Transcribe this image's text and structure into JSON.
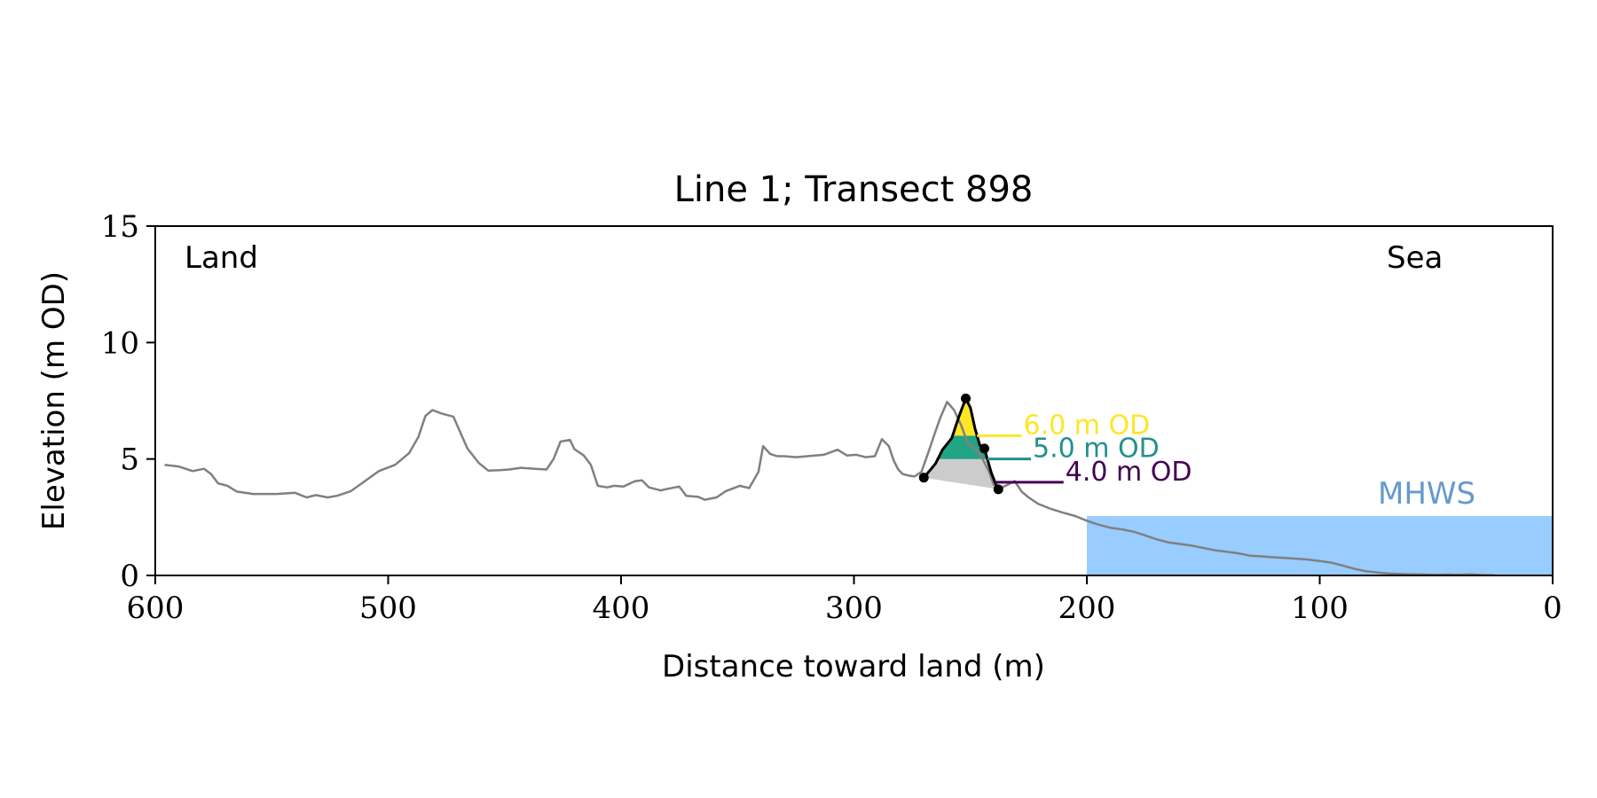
{
  "chart_data": {
    "type": "line",
    "title": "Line 1; Transect 898",
    "xlabel": "Distance toward land (m)",
    "ylabel": "Elevation (m OD)",
    "xlim": [
      600,
      0
    ],
    "ylim": [
      0,
      15
    ],
    "xticks": [
      600,
      500,
      400,
      300,
      200,
      100,
      0
    ],
    "yticks": [
      0,
      5,
      10,
      15
    ],
    "grid": false,
    "annotations": {
      "land": "Land",
      "sea": "Sea",
      "mhws": "MHWS"
    },
    "mhws": {
      "elevation": 2.55,
      "x_start": 200,
      "x_end": 0
    },
    "profile": {
      "x": [
        596,
        590,
        584,
        579,
        576,
        573,
        569,
        565,
        558,
        548,
        540,
        535,
        531,
        526,
        522,
        516,
        510,
        504,
        497,
        491,
        487,
        484,
        481,
        477,
        472,
        466,
        461,
        457,
        452,
        448,
        443,
        437,
        432,
        429,
        426,
        422,
        420,
        416,
        413,
        410,
        406,
        403,
        399,
        394,
        391,
        388,
        383,
        380,
        375,
        372,
        367,
        364,
        359,
        355,
        349,
        345,
        341,
        339,
        336,
        333,
        330,
        325,
        320,
        313,
        307,
        303,
        299,
        295,
        291,
        288,
        285,
        283,
        281,
        279,
        277,
        274,
        271,
        268,
        266,
        263,
        260,
        257,
        254,
        251,
        248,
        245,
        242,
        240,
        237,
        234,
        231,
        228,
        225,
        221,
        216,
        211,
        205,
        200,
        195,
        190,
        185,
        180,
        175,
        170,
        165,
        160,
        155,
        150,
        145,
        140,
        135,
        130,
        125,
        120,
        115,
        110,
        105,
        100,
        95,
        90,
        85,
        80,
        75,
        70,
        65,
        60,
        55,
        50,
        45,
        40,
        35,
        30,
        25
      ],
      "y": [
        4.75,
        4.68,
        4.48,
        4.58,
        4.35,
        3.95,
        3.85,
        3.6,
        3.5,
        3.5,
        3.55,
        3.35,
        3.45,
        3.35,
        3.42,
        3.62,
        4.05,
        4.48,
        4.75,
        5.25,
        5.95,
        6.85,
        7.1,
        6.95,
        6.82,
        5.45,
        4.82,
        4.5,
        4.52,
        4.55,
        4.62,
        4.58,
        4.55,
        5.0,
        5.75,
        5.82,
        5.42,
        5.15,
        4.75,
        3.85,
        3.78,
        3.85,
        3.82,
        4.05,
        4.08,
        3.78,
        3.65,
        3.72,
        3.82,
        3.42,
        3.38,
        3.25,
        3.35,
        3.62,
        3.85,
        3.75,
        4.45,
        5.55,
        5.22,
        5.12,
        5.12,
        5.08,
        5.12,
        5.18,
        5.4,
        5.15,
        5.18,
        5.08,
        5.12,
        5.85,
        5.55,
        4.95,
        4.55,
        4.35,
        4.3,
        4.25,
        4.45,
        5.3,
        5.9,
        6.75,
        7.45,
        7.1,
        6.45,
        5.65,
        5.45,
        5.05,
        4.45,
        3.9,
        3.75,
        3.9,
        4.05,
        3.6,
        3.35,
        3.08,
        2.88,
        2.72,
        2.55,
        2.35,
        2.18,
        2.05,
        1.98,
        1.88,
        1.72,
        1.55,
        1.42,
        1.35,
        1.28,
        1.18,
        1.08,
        1.02,
        0.95,
        0.85,
        0.82,
        0.78,
        0.75,
        0.72,
        0.68,
        0.62,
        0.55,
        0.42,
        0.28,
        0.18,
        0.12,
        0.08,
        0.06,
        0.05,
        0.04,
        0.03,
        0.04,
        0.03,
        0.05,
        0.02,
        0.01
      ]
    },
    "dune": {
      "crest": [
        252,
        7.6
      ],
      "toe": [
        270,
        4.2
      ],
      "heel": [
        238,
        3.7
      ],
      "inner": [
        244,
        5.45
      ],
      "outline_x": [
        270,
        265,
        262,
        258,
        255,
        252,
        250,
        248,
        246,
        244,
        243,
        241,
        239,
        238
      ],
      "outline_y": [
        4.2,
        4.8,
        5.4,
        5.9,
        6.8,
        7.6,
        7.2,
        6.3,
        5.6,
        5.45,
        5.1,
        4.4,
        3.9,
        3.7
      ]
    },
    "levels": [
      {
        "label": "6.0 m OD",
        "elevation": 6.0,
        "color": "#fde725",
        "x_end": 228
      },
      {
        "label": "5.0 m OD",
        "elevation": 5.0,
        "color": "#21918c",
        "x_end": 224
      },
      {
        "label": "4.0 m OD",
        "elevation": 4.0,
        "color": "#440154",
        "x_end": 210
      }
    ],
    "colors": {
      "profile": "#808080",
      "outline": "#000000",
      "mhws_fill": "#99ccff",
      "mhws_text": "#6699cc",
      "dune_base": "#cccccc",
      "band_high": "#fde725",
      "band_mid": "#21a585"
    }
  }
}
